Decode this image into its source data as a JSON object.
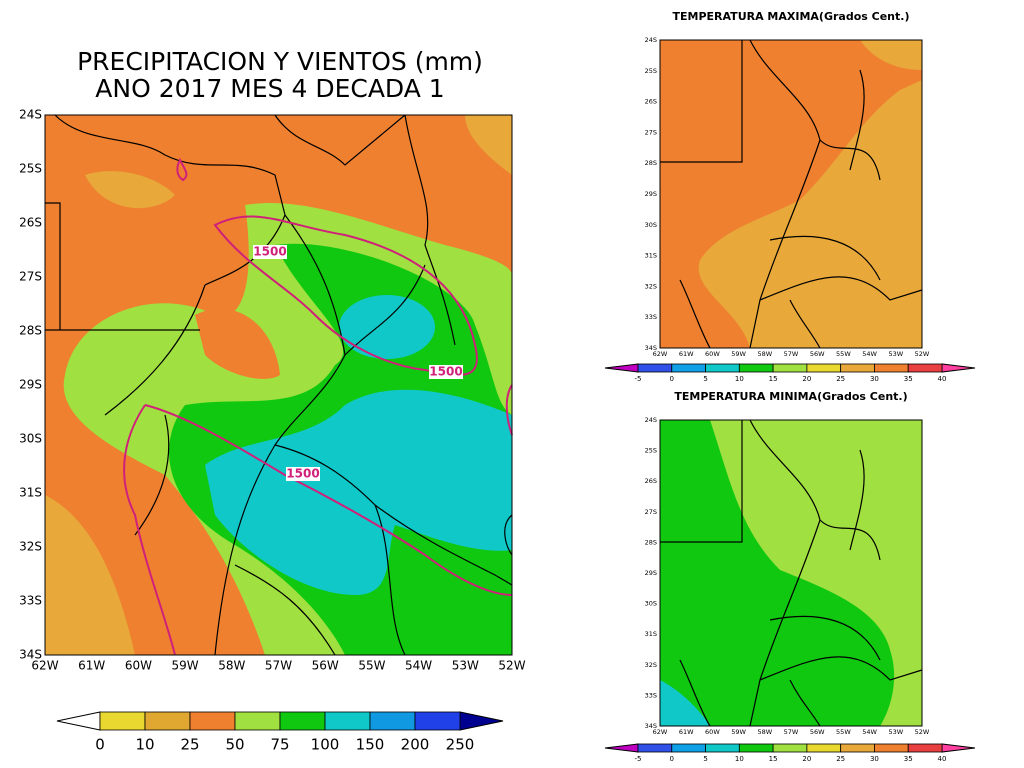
{
  "main": {
    "title": [
      "PRECIPITACION Y VIENTOS (mm)",
      "ANO 2017 MES 4 DECADA 1"
    ],
    "y_labels": [
      "24S",
      "25S",
      "26S",
      "27S",
      "28S",
      "29S",
      "30S",
      "31S",
      "32S",
      "33S",
      "34S"
    ],
    "x_labels": [
      "62W",
      "61W",
      "60W",
      "59W",
      "58W",
      "57W",
      "56W",
      "55W",
      "54W",
      "53W",
      "52W"
    ],
    "contour_labels": [
      "1500",
      "1500",
      "1500"
    ],
    "colorbar": {
      "labels": [
        0,
        10,
        25,
        50,
        75,
        100,
        150,
        200,
        250
      ],
      "colors": [
        "#e8d830",
        "#e0a830",
        "#ee8030",
        "#a0e040",
        "#10c810",
        "#10c8c8",
        "#1098e0",
        "#2040e8"
      ],
      "under": "#ffffff",
      "over": "#000090"
    }
  },
  "tmax": {
    "title": "TEMPERATURA MAXIMA(Grados Cent.)",
    "y_labels": [
      "24S",
      "25S",
      "26S",
      "27S",
      "28S",
      "29S",
      "30S",
      "31S",
      "32S",
      "33S",
      "34S"
    ],
    "x_labels": [
      "62W",
      "61W",
      "60W",
      "59W",
      "58W",
      "57W",
      "56W",
      "55W",
      "54W",
      "53W",
      "52W"
    ],
    "colorbar": {
      "labels": [
        -5,
        0,
        5,
        10,
        15,
        20,
        25,
        30,
        35,
        40
      ],
      "colors": [
        "#3050e8",
        "#10a0e8",
        "#10c8c8",
        "#10c810",
        "#a0e040",
        "#e8d830",
        "#e8a83a",
        "#ee8030",
        "#e84040"
      ],
      "under": "#c000c0",
      "over": "#ff40a0"
    }
  },
  "tmin": {
    "title": "TEMPERATURA MINIMA(Grados Cent.)",
    "y_labels": [
      "24S",
      "25S",
      "26S",
      "27S",
      "28S",
      "29S",
      "30S",
      "31S",
      "32S",
      "33S",
      "34S"
    ],
    "x_labels": [
      "62W",
      "61W",
      "60W",
      "59W",
      "58W",
      "57W",
      "56W",
      "55W",
      "54W",
      "53W",
      "52W"
    ],
    "colorbar": {
      "labels": [
        -5,
        0,
        5,
        10,
        15,
        20,
        25,
        30,
        35,
        40
      ],
      "colors": [
        "#3050e8",
        "#10a0e8",
        "#10c8c8",
        "#10c810",
        "#a0e040",
        "#e8d830",
        "#e8a83a",
        "#ee8030",
        "#e84040"
      ],
      "under": "#c000c0",
      "over": "#ff40a0"
    }
  }
}
